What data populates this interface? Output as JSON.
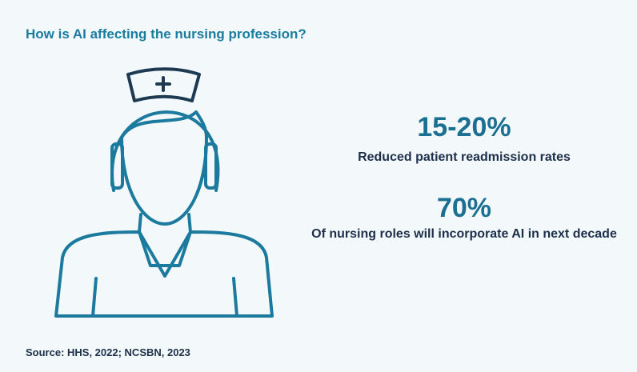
{
  "header": {
    "title": "How is AI affecting the nursing profession?"
  },
  "stats": [
    {
      "value": "15-20%",
      "label": "Reduced patient readmission rates"
    },
    {
      "value": "70%",
      "label": "Of nursing roles will incorporate AI in next decade"
    }
  ],
  "footer": {
    "source": "Source: HHS, 2022; NCSBN, 2023"
  }
}
